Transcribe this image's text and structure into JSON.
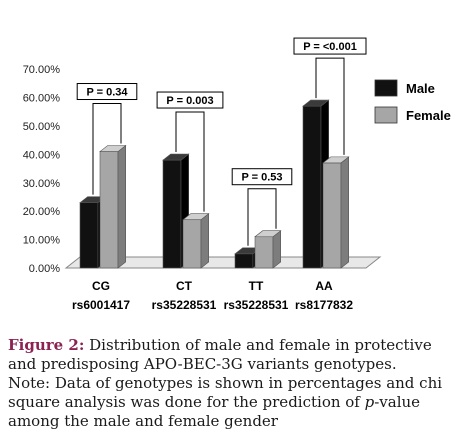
{
  "chart_data": {
    "type": "bar",
    "categories": [
      {
        "genotype": "CG",
        "snp": "rs6001417"
      },
      {
        "genotype": "CT",
        "snp": "rs35228531"
      },
      {
        "genotype": "TT",
        "snp": "rs35228531"
      },
      {
        "genotype": "AA",
        "snp": "rs8177832"
      }
    ],
    "series": [
      {
        "name": "Male",
        "values": [
          23,
          38,
          5,
          57
        ],
        "color": "#111111"
      },
      {
        "name": "Female",
        "values": [
          41,
          17,
          11,
          37
        ],
        "color": "#a6a6a6"
      }
    ],
    "p_values": [
      "P = 0.34",
      "P = 0.003",
      "P = 0.53",
      "P = <0.001"
    ],
    "yticks": [
      "0.00%",
      "10.00%",
      "20.00%",
      "30.00%",
      "40.00%",
      "50.00%",
      "60.00%",
      "70.00%"
    ],
    "ylim": [
      0,
      70
    ],
    "three_d": true,
    "legend_position": "right"
  },
  "caption": {
    "label": "Figure 2:",
    "text": " Distribution of male and female in protective and predisposing APO-BEC-3G variants genotypes.",
    "note_prefix": "Note: Data of genotypes is shown in percentages and chi square analysis was done for the prediction of ",
    "note_p": "p",
    "note_suffix": "-value among the male and female gender"
  }
}
